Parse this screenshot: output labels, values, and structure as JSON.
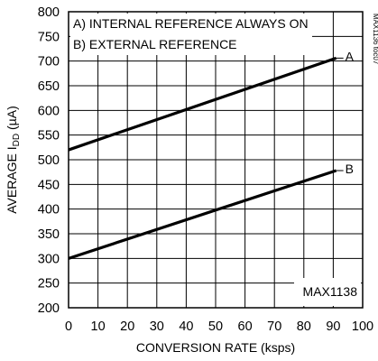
{
  "chart_data": {
    "type": "line",
    "title": "",
    "xlabel": "CONVERSION RATE (ksps)",
    "ylabel_main": "AVERAGE I",
    "ylabel_sub": "DD",
    "ylabel_unit": " (µA)",
    "xlim": [
      0,
      100
    ],
    "ylim": [
      200,
      800
    ],
    "xticks": [
      0,
      10,
      20,
      30,
      40,
      50,
      60,
      70,
      80,
      90,
      100
    ],
    "yticks": [
      200,
      250,
      300,
      350,
      400,
      450,
      500,
      550,
      600,
      650,
      700,
      750,
      800
    ],
    "grid": true,
    "legend_lines": [
      "A) INTERNAL REFERENCE ALWAYS ON",
      "B) EXTERNAL REFERENCE"
    ],
    "part_label": "MAX1138",
    "figure_id": "MAX1136 toc07",
    "series": [
      {
        "name": "A",
        "x": [
          0,
          91
        ],
        "y": [
          520,
          706
        ]
      },
      {
        "name": "B",
        "x": [
          0,
          91
        ],
        "y": [
          300,
          478
        ]
      }
    ]
  }
}
